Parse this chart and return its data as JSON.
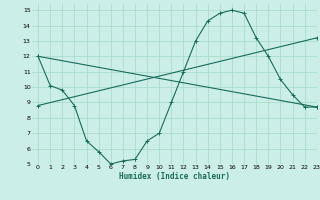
{
  "xlabel": "Humidex (Indice chaleur)",
  "bg_color": "#cceee8",
  "grid_color": "#aaddcc",
  "line_color": "#1a6b5a",
  "xlim": [
    -0.5,
    23
  ],
  "ylim": [
    5,
    15.4
  ],
  "xticks": [
    0,
    1,
    2,
    3,
    4,
    5,
    6,
    7,
    8,
    9,
    10,
    11,
    12,
    13,
    14,
    15,
    16,
    17,
    18,
    19,
    20,
    21,
    22,
    23
  ],
  "yticks": [
    5,
    6,
    7,
    8,
    9,
    10,
    11,
    12,
    13,
    14,
    15
  ],
  "curve1_x": [
    0,
    1,
    2,
    3,
    4,
    5,
    6,
    7,
    8,
    9,
    10,
    11,
    12,
    13,
    14,
    15,
    16,
    17,
    18,
    19,
    20,
    21,
    22,
    23
  ],
  "curve1_y": [
    12.0,
    10.1,
    9.8,
    8.8,
    6.5,
    5.8,
    5.0,
    5.2,
    5.3,
    6.5,
    7.0,
    9.0,
    11.0,
    13.0,
    14.3,
    14.8,
    15.0,
    14.8,
    13.2,
    12.0,
    10.5,
    9.5,
    8.7,
    8.7
  ],
  "curve2_x": [
    0,
    23
  ],
  "curve2_y": [
    12.0,
    8.7
  ],
  "curve3_x": [
    0,
    23
  ],
  "curve3_y": [
    8.8,
    13.2
  ]
}
